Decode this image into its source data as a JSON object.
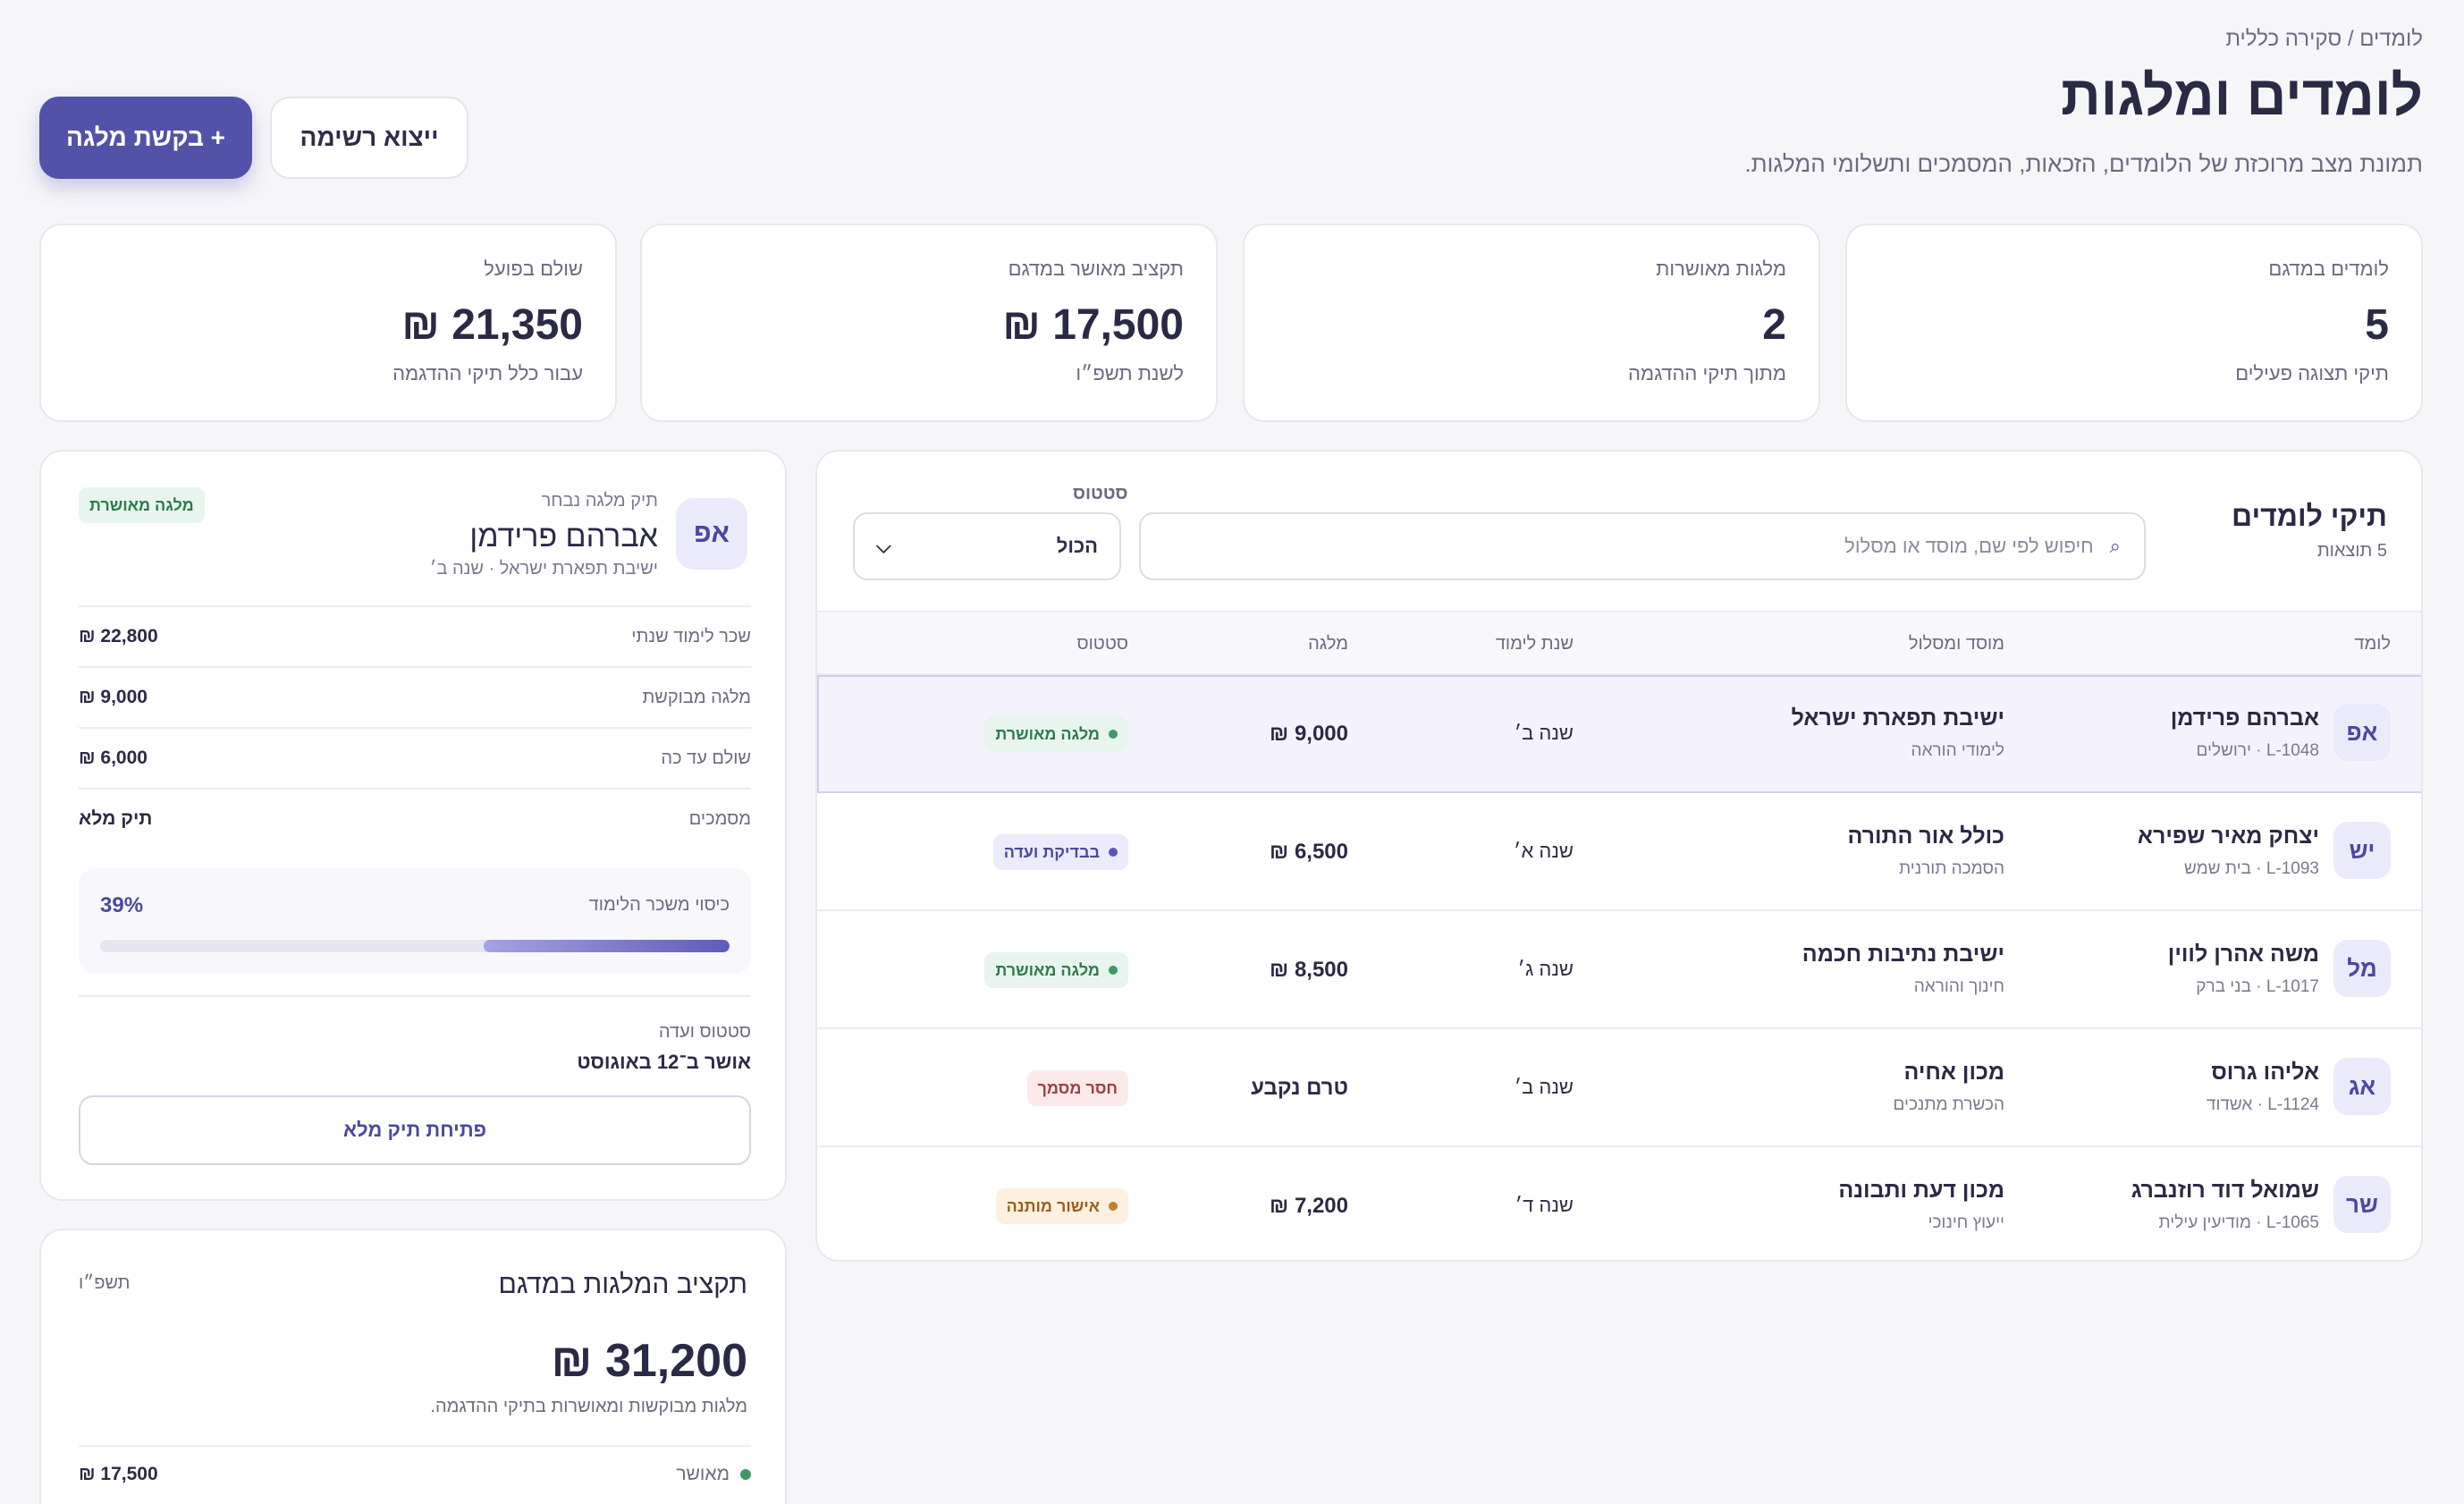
{
  "header": {
    "breadcrumb": "לומדים / סקירה כללית",
    "title": "לומדים ומלגות",
    "subtitle": "תמונת מצב מרוכזת של הלומדים, הזכאות, המסמכים ותשלומי המלגות.",
    "primary_button": "+ בקשת מלגה",
    "secondary_button": "ייצוא רשימה"
  },
  "stats": [
    {
      "label": "לומדים במדגם",
      "value": "5",
      "note": "תיקי תצוגה פעילים"
    },
    {
      "label": "מלגות מאושרות",
      "value": "2",
      "note": "מתוך תיקי ההדגמה"
    },
    {
      "label": "תקציב מאושר במדגם",
      "value": "17,500 ₪",
      "note": "לשנת תשפ״ו"
    },
    {
      "label": "שולם בפועל",
      "value": "21,350 ₪",
      "note": "עבור כלל תיקי ההדגמה"
    }
  ],
  "list": {
    "title": "תיקי לומדים",
    "count": "5 תוצאות",
    "search_placeholder": "חיפוש לפי שם, מוסד או מסלול",
    "status_label": "סטטוס",
    "status_value": "הכול",
    "columns": {
      "learner": "לומד",
      "institution": "מוסד ומסלול",
      "year": "שנת לימוד",
      "grant": "מלגה",
      "status": "סטטוס"
    },
    "rows": [
      {
        "initials": "אפ",
        "name": "אברהם פרידמן",
        "meta": "L-1048 · ירושלים",
        "institution": "ישיבת תפארת ישראל",
        "track": "לימודי הוראה",
        "year": "שנה ב׳",
        "amount": "9,000 ₪",
        "status": "מלגה מאושרת",
        "status_kind": "approved"
      },
      {
        "initials": "יש",
        "name": "יצחק מאיר שפירא",
        "meta": "L-1093 · בית שמש",
        "institution": "כולל אור התורה",
        "track": "הסמכה תורנית",
        "year": "שנה א׳",
        "amount": "6,500 ₪",
        "status": "בבדיקת ועדה",
        "status_kind": "review"
      },
      {
        "initials": "מל",
        "name": "משה אהרן לווין",
        "meta": "L-1017 · בני ברק",
        "institution": "ישיבת נתיבות חכמה",
        "track": "חינוך והוראה",
        "year": "שנה ג׳",
        "amount": "8,500 ₪",
        "status": "מלגה מאושרת",
        "status_kind": "approved"
      },
      {
        "initials": "אג",
        "name": "אליהו גרוס",
        "meta": "L-1124 · אשדוד",
        "institution": "מכון אחיה",
        "track": "הכשרת מתנכים",
        "year": "שנה ב׳",
        "amount": "טרם נקבע",
        "status": "חסר מסמך",
        "status_kind": "missing"
      },
      {
        "initials": "שר",
        "name": "שמואל דוד רוזנברג",
        "meta": "L-1065 · מודיעין עילית",
        "institution": "מכון דעת ותבונה",
        "track": "ייעוץ חינוכי",
        "year": "שנה ד׳",
        "amount": "7,200 ₪",
        "status": "אישור מותנה",
        "status_kind": "conditional"
      }
    ]
  },
  "detail": {
    "initials": "אפ",
    "kicker": "תיק מלגה נבחר",
    "name": "אברהם פרידמן",
    "meta": "ישיבת תפארת ישראל · שנה ב׳",
    "badge": "מלגה מאושרת",
    "rows": [
      {
        "label": "שכר לימוד שנתי",
        "value": "22,800 ₪"
      },
      {
        "label": "מלגה מבוקשת",
        "value": "9,000 ₪"
      },
      {
        "label": "שולם עד כה",
        "value": "6,000 ₪"
      },
      {
        "label": "מסמכים",
        "value": "תיק מלא"
      }
    ],
    "coverage_label": "כיסוי משכר הלימוד",
    "coverage_pct": "39%",
    "coverage_fraction": 0.39,
    "status_label": "סטטוס ועדה",
    "status_value": "אושר ב־12 באוגוסט",
    "open_button": "פתיחת תיק מלא"
  },
  "budget": {
    "title": "תקציב המלגות במדגם",
    "year": "תשפ״ו",
    "total": "31,200 ₪",
    "note": "מלגות מבוקשות ומאושרות בתיקי ההדגמה.",
    "rows": [
      {
        "label": "מאושר",
        "value": "17,500 ₪",
        "color": "#3f9966"
      }
    ]
  }
}
